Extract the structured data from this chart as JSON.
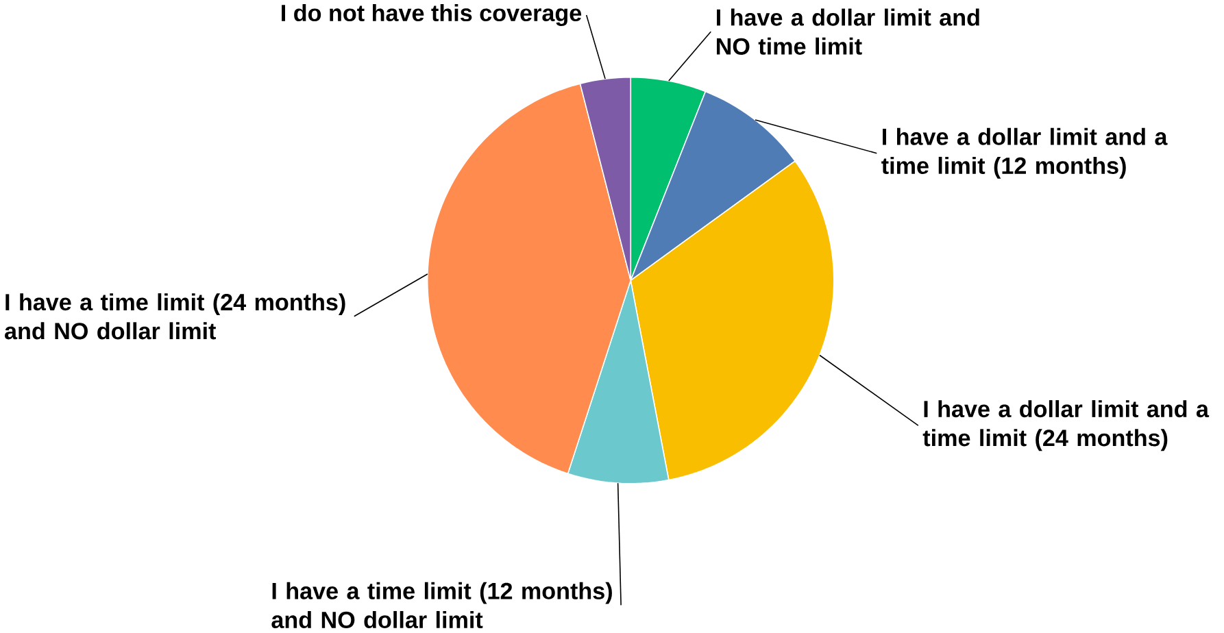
{
  "chart_data": {
    "type": "pie",
    "categories": [
      "I have a dollar limit and NO time limit",
      "I have a dollar limit and a time limit (12 months)",
      "I have a dollar limit and a time limit (24 months)",
      "I have a time limit (12 months) and NO dollar limit",
      "I have a time limit (24 months) and NO dollar limit",
      "I do not have this coverage"
    ],
    "values": [
      6,
      9,
      32,
      8,
      41,
      4
    ],
    "colors": [
      "#00bf6f",
      "#507cb6",
      "#f9be00",
      "#6bc8cd",
      "#ff8b4f",
      "#7d5ba6"
    ]
  }
}
